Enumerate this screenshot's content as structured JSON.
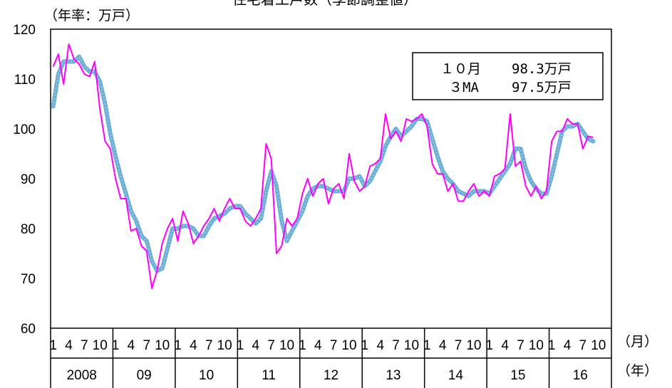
{
  "chart_data": {
    "type": "line",
    "title": "住宅着工戸数（季節調整値）",
    "ylabel": "（年率：万戸）",
    "xunit_month": "（月）",
    "xunit_year": "（年）",
    "ylim": [
      60,
      120
    ],
    "yticks": [
      60,
      70,
      80,
      90,
      100,
      110,
      120
    ],
    "month_tick_labels": [
      "1",
      "4",
      "7",
      "10"
    ],
    "years": [
      "2008",
      "09",
      "10",
      "11",
      "12",
      "13",
      "14",
      "15",
      "16"
    ],
    "legend": {
      "line1_label": "１０月",
      "line1_value": "98.3万戸",
      "line2_label": "３MA",
      "line2_value": "97.5万戸"
    },
    "series": [
      {
        "name": "１０月",
        "color": "#ff00ff",
        "values": [
          112.5,
          115.0,
          109.0,
          117.0,
          114.0,
          113.0,
          111.0,
          110.5,
          113.5,
          104.0,
          97.5,
          96.0,
          90.0,
          86.0,
          86.0,
          79.5,
          80.0,
          76.5,
          75.5,
          68.0,
          71.5,
          77.0,
          80.0,
          82.0,
          77.5,
          83.5,
          81.0,
          77.0,
          78.5,
          80.5,
          82.0,
          84.0,
          81.5,
          84.0,
          86.0,
          84.0,
          84.0,
          81.5,
          80.5,
          82.0,
          84.0,
          97.0,
          94.0,
          75.0,
          76.5,
          82.0,
          80.5,
          82.0,
          87.0,
          90.0,
          86.5,
          89.0,
          90.0,
          85.0,
          88.0,
          89.0,
          86.0,
          95.0,
          89.5,
          87.5,
          88.5,
          92.5,
          93.0,
          94.0,
          103.0,
          98.0,
          99.5,
          97.5,
          102.0,
          101.5,
          102.0,
          103.0,
          100.5,
          93.0,
          91.0,
          91.0,
          87.5,
          89.0,
          85.5,
          85.5,
          87.5,
          89.0,
          86.5,
          87.5,
          86.5,
          90.5,
          91.0,
          92.0,
          103.0,
          92.5,
          93.5,
          88.5,
          86.5,
          88.5,
          86.0,
          87.5,
          97.5,
          99.5,
          99.5,
          102.0,
          101.0,
          101.0,
          96.0,
          98.5,
          98.3
        ]
      },
      {
        "name": "３MA",
        "color": "#6baed6",
        "values": [
          104.5,
          111.0,
          113.5,
          113.5,
          113.5,
          114.5,
          112.5,
          111.5,
          111.5,
          109.5,
          105.0,
          99.0,
          94.5,
          90.5,
          87.0,
          83.5,
          81.5,
          78.5,
          77.5,
          73.5,
          71.5,
          72.0,
          76.0,
          80.0,
          80.0,
          80.5,
          80.5,
          80.0,
          78.5,
          78.5,
          80.5,
          82.0,
          82.5,
          83.0,
          84.0,
          84.5,
          84.5,
          83.0,
          82.0,
          81.0,
          82.0,
          87.5,
          91.5,
          88.5,
          81.5,
          77.5,
          79.5,
          81.5,
          83.5,
          86.5,
          88.0,
          88.5,
          88.5,
          88.0,
          87.5,
          87.5,
          87.5,
          90.0,
          90.0,
          90.5,
          88.5,
          89.5,
          91.5,
          93.5,
          96.5,
          98.5,
          100.0,
          98.5,
          99.5,
          100.5,
          102.0,
          102.0,
          101.5,
          98.0,
          94.5,
          91.5,
          90.0,
          89.0,
          87.5,
          87.0,
          86.5,
          87.5,
          87.5,
          87.5,
          87.0,
          88.5,
          90.0,
          91.5,
          93.0,
          96.0,
          96.0,
          92.0,
          89.5,
          88.0,
          87.0,
          87.0,
          90.5,
          95.0,
          99.5,
          100.5,
          100.5,
          101.0,
          99.5,
          98.0,
          97.5
        ]
      }
    ]
  }
}
